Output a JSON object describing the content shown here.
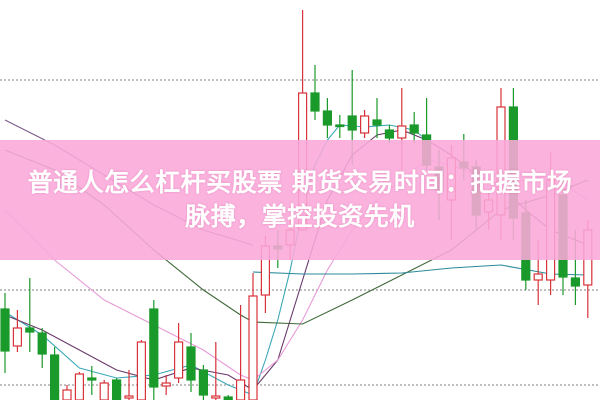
{
  "banner": {
    "line1": "普通人怎么杠杆买股票 期货交易时间：把握市场",
    "line2": "脉搏，掌控投资先机"
  },
  "colors": {
    "up": "#d8313a",
    "down": "#1a9a2a",
    "grid": "#9a9a9a",
    "banner": "#faa8da"
  },
  "chart_data": {
    "type": "candlestick",
    "ylim": [
      0,
      40
    ],
    "grid": "horizontal-dotted",
    "gridlines": [
      32,
      11,
      1.5
    ],
    "candles": [
      [
        9.1,
        4.9,
        10.7,
        2.7
      ],
      [
        5.4,
        7.2,
        9.0,
        4.8
      ],
      [
        7.2,
        6.8,
        12.2,
        4.8
      ],
      [
        6.7,
        4.6,
        7.2,
        3.2
      ],
      [
        4.5,
        0,
        5.3,
        0
      ],
      [
        0,
        1.0,
        1.5,
        0
      ],
      [
        0,
        2.6,
        2.8,
        0
      ],
      [
        2.2,
        2.0,
        3.4,
        0.5
      ],
      [
        0,
        1.7,
        2.0,
        0
      ],
      [
        2.0,
        0,
        2.2,
        0
      ],
      [
        0.2,
        0.4,
        3.0,
        0
      ],
      [
        0,
        5.8,
        6.0,
        0
      ],
      [
        9.1,
        1.3,
        10.0,
        0
      ],
      [
        1.4,
        1.7,
        2.5,
        0.5
      ],
      [
        2.2,
        5.8,
        7.7,
        1.7
      ],
      [
        5.3,
        2.0,
        6.7,
        0.8
      ],
      [
        3.0,
        0.5,
        3.5,
        0
      ],
      [
        0.2,
        0.4,
        5.8,
        0
      ],
      [
        0.3,
        0,
        0.5,
        0
      ],
      [
        0,
        2.0,
        9.5,
        0
      ],
      [
        0,
        10.4,
        12.7,
        0
      ],
      [
        10.5,
        15.4,
        16.4,
        8.7
      ],
      [
        15.4,
        15.1,
        17.0,
        13.2
      ],
      [
        15.5,
        17.0,
        18.0,
        14.0
      ],
      [
        17.0,
        30.7,
        39.0,
        17.0
      ],
      [
        30.7,
        28.9,
        33.5,
        28.0
      ],
      [
        28.9,
        27.5,
        30.2,
        26.2
      ],
      [
        27.5,
        27.4,
        28.5,
        26.2
      ],
      [
        28.4,
        27.0,
        33.0,
        23.5
      ],
      [
        26.7,
        28.4,
        29.0,
        26.2
      ],
      [
        28.0,
        27.5,
        30.2,
        26.2
      ],
      [
        27.0,
        26.2,
        27.5,
        25.7
      ],
      [
        26.2,
        27.4,
        31.2,
        23.0
      ],
      [
        27.5,
        26.7,
        28.8,
        25.7
      ],
      [
        26.5,
        23.5,
        30.2,
        23.0
      ],
      [
        23.3,
        21.0,
        25.0,
        18.0
      ],
      [
        20.0,
        24.2,
        25.5,
        16.0
      ],
      [
        23.8,
        23.2,
        26.6,
        22.0
      ],
      [
        23.3,
        18.5,
        24.0,
        17.0
      ],
      [
        18.8,
        20.0,
        21.0,
        17.0
      ],
      [
        18.5,
        29.3,
        31.2,
        16.0
      ],
      [
        29.3,
        18.2,
        31.2,
        16.0
      ],
      [
        18.7,
        12.0,
        20.0,
        11.0
      ],
      [
        12.0,
        12.6,
        16.0,
        9.5
      ],
      [
        12.0,
        22.0,
        24.8,
        10.5
      ],
      [
        20.5,
        12.3,
        22.0,
        10.5
      ],
      [
        12.2,
        11.4,
        17.0,
        9.5
      ],
      [
        11.5,
        17.0,
        18.0,
        8.2
      ]
    ],
    "moving_averages": [
      {
        "color": "#3aa8b8",
        "points": [
          [
            0,
            8.8
          ],
          [
            3,
            6.5
          ],
          [
            6,
            3.2
          ],
          [
            9,
            2.2
          ],
          [
            12,
            2.5
          ],
          [
            15,
            3.5
          ],
          [
            18,
            1.5
          ],
          [
            20,
            0.5
          ],
          [
            21,
            4
          ],
          [
            22,
            8
          ],
          [
            23,
            13
          ],
          [
            24,
            19
          ],
          [
            25,
            23.5
          ],
          [
            26,
            26
          ],
          [
            27,
            27.5
          ],
          [
            29,
            27.3
          ],
          [
            31,
            27.5
          ],
          [
            33,
            27.0
          ],
          [
            34,
            26.0
          ]
        ]
      },
      {
        "color": "#6a3a6a",
        "points": [
          [
            0,
            8.5
          ],
          [
            3,
            7.0
          ],
          [
            6,
            5.0
          ],
          [
            9,
            3.0
          ],
          [
            12,
            2.0
          ],
          [
            15,
            3.2
          ],
          [
            18,
            2.5
          ],
          [
            20,
            1.0
          ],
          [
            22,
            4
          ],
          [
            24,
            12
          ],
          [
            26,
            20
          ],
          [
            28,
            24.5
          ],
          [
            30,
            26.5
          ],
          [
            32,
            27
          ],
          [
            34,
            26
          ],
          [
            36,
            24.5
          ],
          [
            38,
            22.5
          ],
          [
            40,
            21.5
          ],
          [
            42,
            19
          ],
          [
            44,
            17
          ],
          [
            47,
            15.5
          ]
        ]
      },
      {
        "color": "#e89ad8",
        "points": [
          [
            0,
            19
          ],
          [
            4,
            14
          ],
          [
            8,
            10
          ],
          [
            12,
            7.5
          ],
          [
            16,
            5
          ],
          [
            19,
            2.5
          ],
          [
            20,
            2.0
          ],
          [
            22,
            4
          ],
          [
            24,
            8
          ],
          [
            26,
            13
          ],
          [
            28,
            17
          ],
          [
            30,
            20
          ],
          [
            32,
            22
          ],
          [
            34,
            24
          ],
          [
            36,
            23.5
          ],
          [
            38,
            22.5
          ],
          [
            40,
            21.5
          ],
          [
            42,
            22
          ],
          [
            44,
            22.5
          ],
          [
            47,
            20
          ]
        ]
      },
      {
        "color": "#3f6a3a",
        "points": [
          [
            0,
            25
          ],
          [
            4,
            23
          ],
          [
            8,
            19.5
          ],
          [
            12,
            15
          ],
          [
            16,
            11
          ],
          [
            19,
            8.5
          ],
          [
            20,
            7.8
          ],
          [
            24,
            7.6
          ],
          [
            28,
            10
          ],
          [
            32,
            12.5
          ],
          [
            36,
            15
          ],
          [
            40,
            19
          ],
          [
            44,
            20.5
          ],
          [
            47,
            22
          ]
        ]
      },
      {
        "color": "#2a8a9a",
        "points": [
          [
            20,
            12.8
          ],
          [
            24,
            12.6
          ],
          [
            28,
            12.6
          ],
          [
            32,
            12.7
          ],
          [
            36,
            13.2
          ],
          [
            40,
            13.5
          ],
          [
            44,
            12.6
          ],
          [
            47,
            12.5
          ]
        ]
      },
      {
        "color": "#7a5a8a",
        "points": [
          [
            0,
            28
          ],
          [
            4,
            25.5
          ],
          [
            8,
            22.5
          ],
          [
            12,
            19.5
          ],
          [
            16,
            17
          ],
          [
            20,
            15.5
          ]
        ]
      }
    ]
  }
}
